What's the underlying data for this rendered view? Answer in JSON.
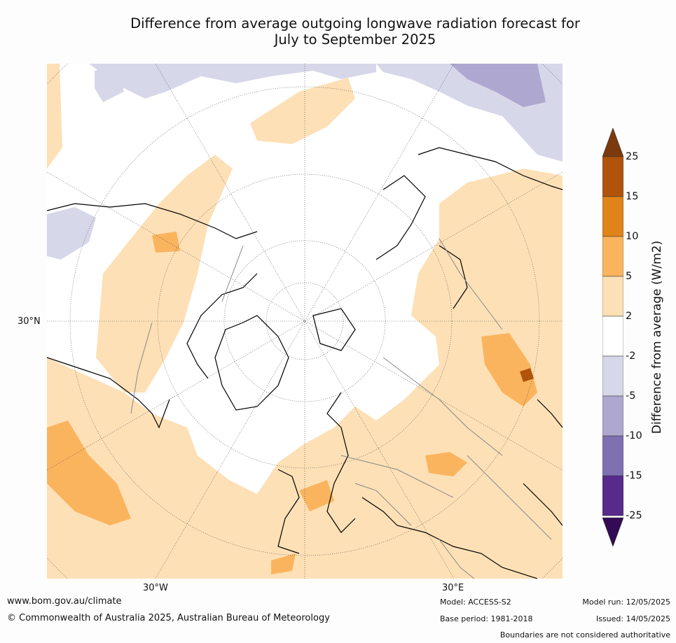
{
  "title_line1": "Difference from average outgoing longwave radiation forecast for",
  "title_line2": "July to September 2025",
  "map": {
    "projection": "north-polar-stereographic",
    "labels": {
      "lat_30n": "30°N",
      "lon_30w": "30°W",
      "lon_30e": "30°E"
    }
  },
  "colorbar": {
    "label": "Difference from average (W/m2)",
    "ticks": [
      "25",
      "15",
      "10",
      "5",
      "2",
      "-2",
      "-5",
      "-10",
      "-15",
      "-25"
    ],
    "colors": [
      "#7b3a0e",
      "#b0540c",
      "#e0841a",
      "#fbb45e",
      "#fde0b6",
      "#ffffff",
      "#d7d7ea",
      "#aea7d0",
      "#7e70b1",
      "#582a8c",
      "#330a55"
    ]
  },
  "footer": {
    "url": "www.bom.gov.au/climate",
    "copyright": "© Commonwealth of Australia 2025, Australian Bureau of Meteorology",
    "model": "Model: ACCESS-S2",
    "base_period": "Base period: 1981-2018",
    "model_run": "Model run: 12/05/2025",
    "issued": "Issued: 14/05/2025",
    "disclaimer": "Boundaries are not considered authoritative"
  }
}
